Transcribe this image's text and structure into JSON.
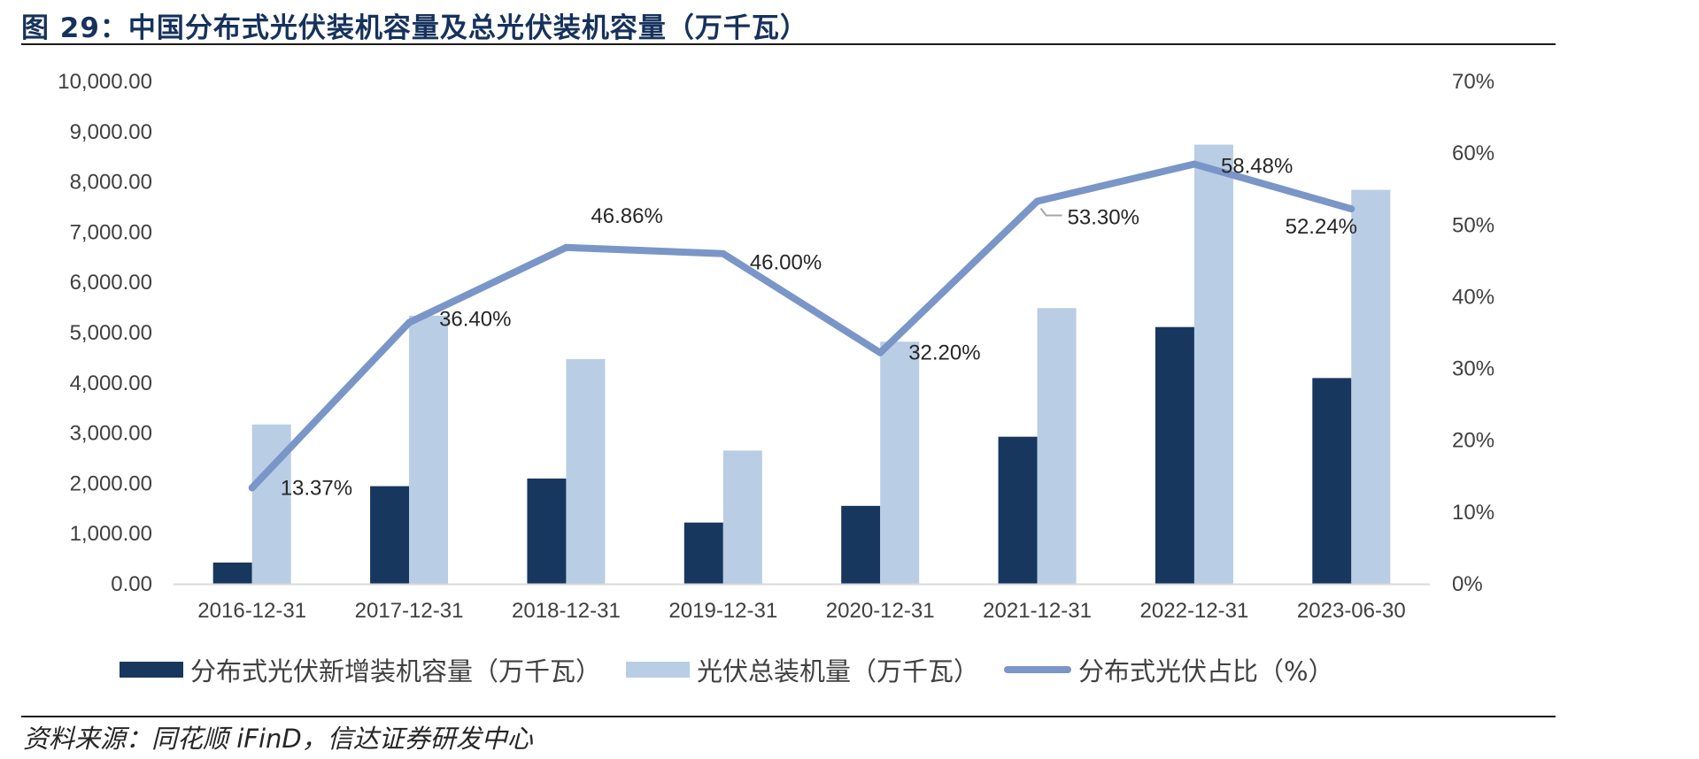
{
  "figure": {
    "title": "图 29：中国分布式光伏装机容量及总光伏装机容量（万千瓦）",
    "source": "资料来源：同花顺 iFinD，信达证券研发中心"
  },
  "colors": {
    "title": "#16325c",
    "distributed_bar": "#17375e",
    "total_bar": "#b9cde5",
    "share_line": "#7a96c8"
  },
  "chart_data": {
    "type": "bar",
    "categories": [
      "2016-12-31",
      "2017-12-31",
      "2018-12-31",
      "2019-12-31",
      "2020-12-31",
      "2021-12-31",
      "2022-12-31",
      "2023-06-30"
    ],
    "series": [
      {
        "name": "分布式光伏新增装机容量（万千瓦）",
        "type": "bar",
        "axis": "left",
        "values": [
          424,
          1944,
          2096,
          1220,
          1552,
          2928,
          5111,
          4096
        ]
      },
      {
        "name": "光伏总装机量（万千瓦）",
        "type": "bar",
        "axis": "left",
        "values": [
          3171,
          5338,
          4473,
          2652,
          4820,
          5488,
          8741,
          7842
        ]
      },
      {
        "name": "分布式光伏占比（%）",
        "type": "line",
        "axis": "right",
        "values": [
          13.37,
          36.4,
          46.86,
          46.0,
          32.2,
          53.3,
          58.48,
          52.24
        ],
        "labels": [
          "13.37%",
          "36.40%",
          "46.86%",
          "46.00%",
          "32.20%",
          "53.30%",
          "58.48%",
          "52.24%"
        ]
      }
    ],
    "y_left": {
      "ylim": [
        0,
        10000
      ],
      "ticks": [
        "0.00",
        "1,000.00",
        "2,000.00",
        "3,000.00",
        "4,000.00",
        "5,000.00",
        "6,000.00",
        "7,000.00",
        "8,000.00",
        "9,000.00",
        "10,000.00"
      ]
    },
    "y_right": {
      "ylim": [
        0,
        70
      ],
      "ticks": [
        "0%",
        "10%",
        "20%",
        "30%",
        "40%",
        "50%",
        "60%",
        "70%"
      ]
    },
    "legend_position": "bottom",
    "grid": false
  }
}
